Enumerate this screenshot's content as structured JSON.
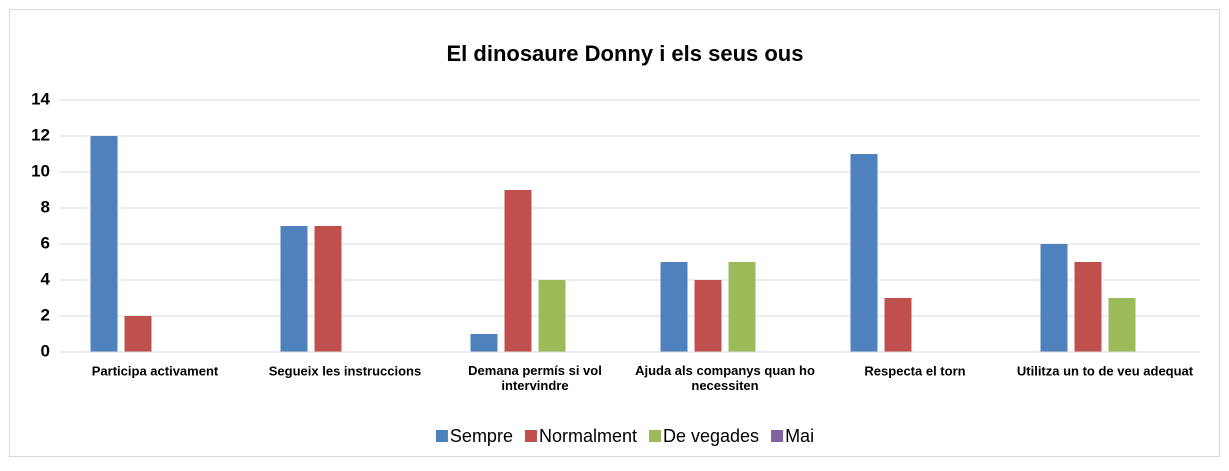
{
  "chart_data": {
    "type": "bar",
    "title": "El dinosaure Donny i els seus ous",
    "categories": [
      "Participa activament",
      "Segueix les instruccions",
      "Demana permís si vol intervindre",
      "Ajuda als companys quan ho necessiten",
      "Respecta el torn",
      "Utilitza un to de veu adequat"
    ],
    "series": [
      {
        "name": "Sempre",
        "color": "#4f81bd",
        "values": [
          12,
          7,
          1,
          5,
          11,
          6
        ]
      },
      {
        "name": "Normalment",
        "color": "#c0504d",
        "values": [
          2,
          7,
          9,
          4,
          3,
          5
        ]
      },
      {
        "name": "De vegades",
        "color": "#9bbb59",
        "values": [
          0,
          0,
          4,
          5,
          0,
          3
        ]
      },
      {
        "name": "Mai",
        "color": "#8064a2",
        "values": [
          0,
          0,
          0,
          0,
          0,
          0
        ]
      }
    ],
    "ylim": [
      0,
      14
    ],
    "yticks": [
      0,
      2,
      4,
      6,
      8,
      10,
      12,
      14
    ],
    "grid": true,
    "legend": "bottom"
  }
}
